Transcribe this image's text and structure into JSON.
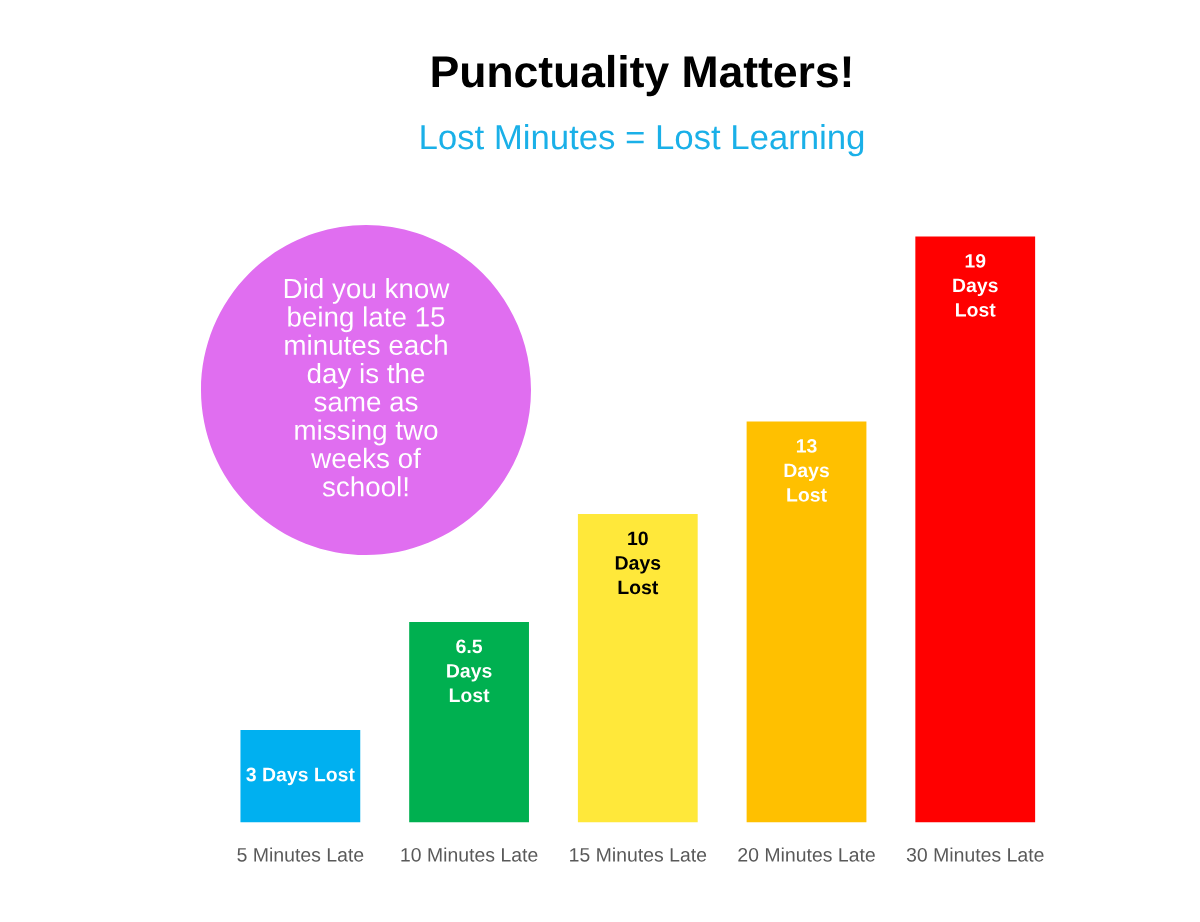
{
  "chart_data": {
    "type": "bar",
    "title": "Punctuality Matters!",
    "subtitle": "Lost Minutes = Lost Learning",
    "categories": [
      "5 Minutes Late",
      "10 Minutes Late",
      "15 Minutes Late",
      "20 Minutes Late",
      "30 Minutes Late"
    ],
    "values": [
      3,
      6.5,
      10,
      13,
      19
    ],
    "colors": [
      "#00b0f0",
      "#00b050",
      "#ffe83a",
      "#ffc000",
      "#ff0000"
    ],
    "value_labels": [
      "3 Days Lost",
      "6.5\nDays\nLost",
      "10\nDays\nLost",
      "13\nDays\nLost",
      "19\nDays\nLost"
    ],
    "annotations": [
      "Did you know\nbeing late 15\nminutes each\nday is the\nsame as\nmissing two\nweeks of\nschool!"
    ],
    "grid": false,
    "legend": false
  }
}
